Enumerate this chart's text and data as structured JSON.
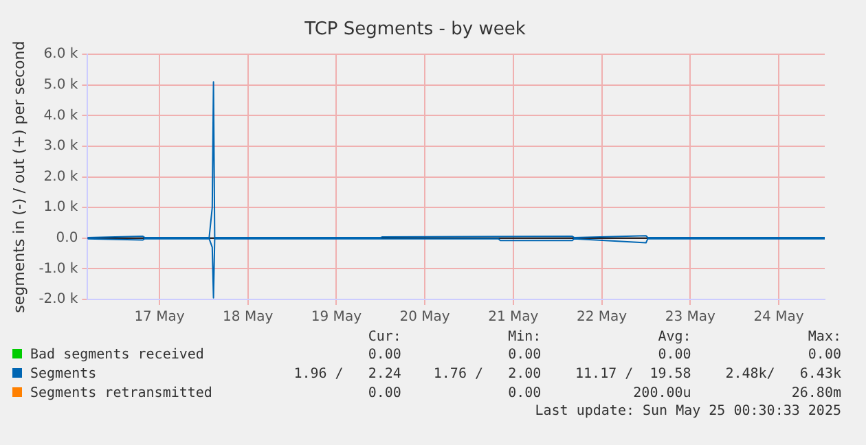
{
  "chart_data": {
    "type": "line",
    "title": "TCP Segments - by week",
    "ylabel": "segments in (-) / out (+) per second",
    "xlim": [
      "2025-05-16T16:30",
      "2025-05-25T00:30"
    ],
    "xticks": [
      {
        "value": "2025-05-17T12:00",
        "label": "17 May"
      },
      {
        "value": "2025-05-18T12:00",
        "label": "18 May"
      },
      {
        "value": "2025-05-19T12:00",
        "label": "19 May"
      },
      {
        "value": "2025-05-20T12:00",
        "label": "20 May"
      },
      {
        "value": "2025-05-21T12:00",
        "label": "21 May"
      },
      {
        "value": "2025-05-22T12:00",
        "label": "22 May"
      },
      {
        "value": "2025-05-23T12:00",
        "label": "23 May"
      },
      {
        "value": "2025-05-24T12:00",
        "label": "24 May"
      }
    ],
    "ylim": [
      -2000,
      6000
    ],
    "yticks": [
      {
        "value": -2000,
        "label": "-2.0 k"
      },
      {
        "value": -1000,
        "label": "-1.0 k"
      },
      {
        "value": 0,
        "label": "0.0"
      },
      {
        "value": 1000,
        "label": "1.0 k"
      },
      {
        "value": 2000,
        "label": "2.0 k"
      },
      {
        "value": 3000,
        "label": "3.0 k"
      },
      {
        "value": 4000,
        "label": "4.0 k"
      },
      {
        "value": 5000,
        "label": "5.0 k"
      },
      {
        "value": 6000,
        "label": "6.0 k"
      }
    ],
    "series": [
      {
        "name": "Bad segments received",
        "color": "#00cc00"
      },
      {
        "name": "Segments",
        "color": "#0066b3",
        "x": [
          "2025-05-16T16:30",
          "2025-05-17T07:30",
          "2025-05-17T08:00",
          "2025-05-18T01:30",
          "2025-05-18T02:20",
          "2025-05-18T02:40",
          "2025-05-18T03:00",
          "2025-05-20T00:00",
          "2025-05-20T00:30",
          "2025-05-22T04:00",
          "2025-05-22T04:30",
          "2025-05-23T00:00",
          "2025-05-23T00:30",
          "2025-05-25T00:30"
        ],
        "values": [
          20,
          60,
          20,
          20,
          1000,
          5100,
          20,
          20,
          40,
          60,
          20,
          80,
          20,
          20
        ]
      },
      {
        "color": "#0066b3",
        "x": [
          "2025-05-16T16:30",
          "2025-05-17T07:30",
          "2025-05-17T08:00",
          "2025-05-18T01:30",
          "2025-05-18T02:20",
          "2025-05-18T02:40",
          "2025-05-18T03:00",
          "2025-05-21T08:00",
          "2025-05-21T08:30",
          "2025-05-22T04:00",
          "2025-05-22T04:30",
          "2025-05-23T00:00",
          "2025-05-23T00:30",
          "2025-05-25T00:30"
        ],
        "values": [
          -20,
          -60,
          -20,
          -20,
          -300,
          -1950,
          -20,
          -20,
          -80,
          -80,
          -20,
          -150,
          -20,
          -20
        ]
      },
      {
        "name": "Segments retransmitted",
        "color": "#ff8000"
      }
    ],
    "grid": true,
    "legend": "bottom",
    "marker": "none",
    "line_style": "solid",
    "annotations": [
      "Cur:",
      "Min:",
      "Avg:",
      "Max:",
      "0.00",
      "0.00",
      "0.00",
      "0.00",
      "1.96 /   2.24",
      "1.76 /   2.00",
      "11.17 /  19.58",
      "2.48k/   6.43k",
      "0.00",
      "0.00",
      "200.00u",
      "26.80m",
      "Last update: Sun May 25 00:30:33 2025"
    ]
  }
}
